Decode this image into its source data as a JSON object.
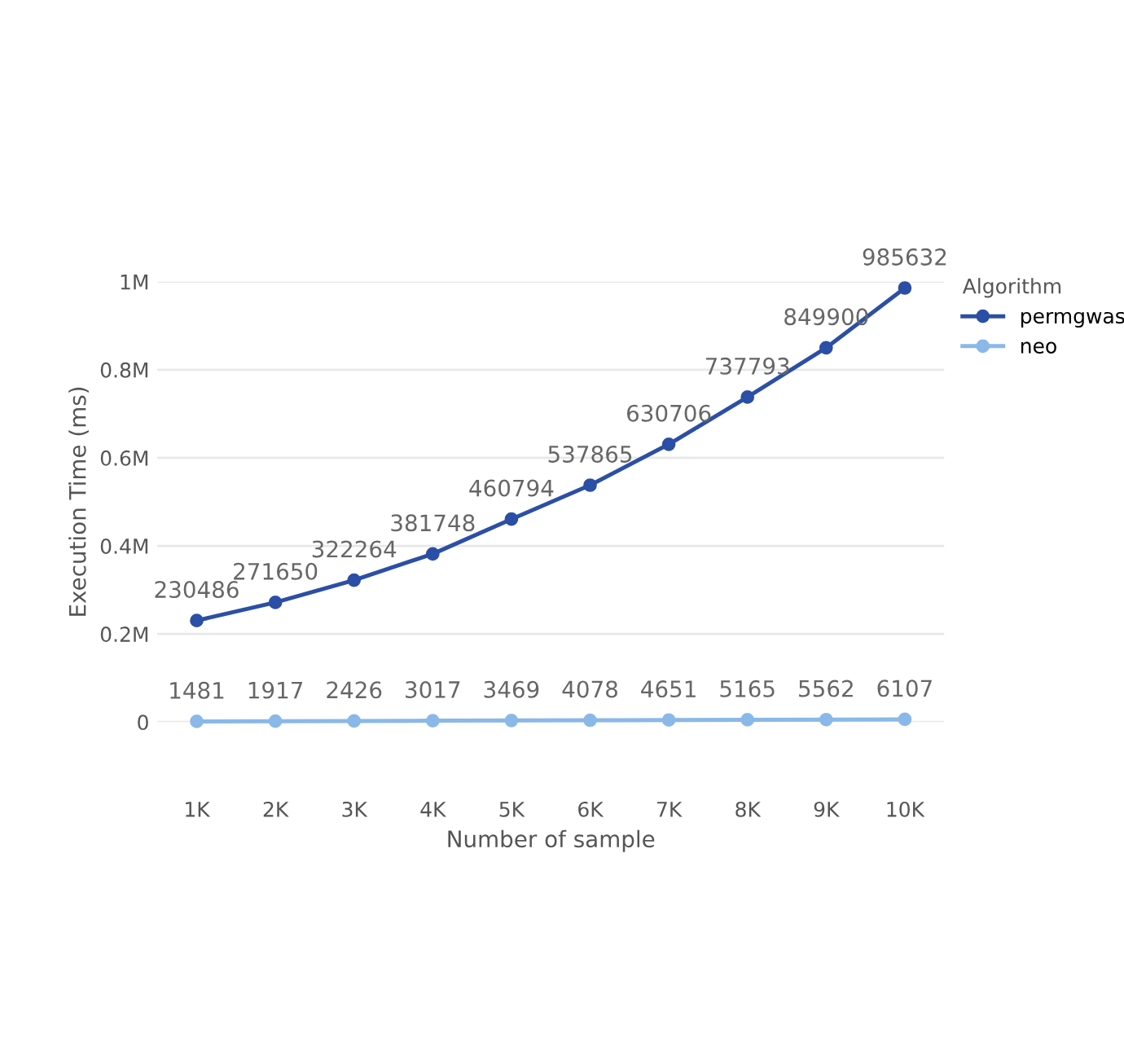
{
  "chart_data": {
    "type": "line",
    "xlabel": "Number of sample",
    "ylabel": "Execution Time (ms)",
    "legend_title": "Algorithm",
    "categories": [
      "1K",
      "2K",
      "3K",
      "4K",
      "5K",
      "6K",
      "7K",
      "8K",
      "9K",
      "10K"
    ],
    "series": [
      {
        "name": "permgwas",
        "color": "#2b4fa6",
        "values": [
          230486,
          271650,
          322264,
          381748,
          460794,
          537865,
          630706,
          737793,
          849900,
          985632
        ]
      },
      {
        "name": "neo",
        "color": "#8ab8e8",
        "values": [
          1481,
          1917,
          2426,
          3017,
          3469,
          4078,
          4651,
          5165,
          5562,
          6107
        ]
      }
    ],
    "ylim": [
      0,
      1000000
    ],
    "yticks": [
      0,
      {
        "value": 200000,
        "label": "0.2M"
      },
      {
        "value": 400000,
        "label": "0.4M"
      },
      {
        "value": 600000,
        "label": "0.6M"
      },
      {
        "value": 800000,
        "label": "0.8M"
      },
      {
        "value": 1000000,
        "label": "1M"
      }
    ],
    "grid": "y",
    "legend": "top right",
    "marker": "circle",
    "line_style": "solid",
    "data_labels": true
  }
}
